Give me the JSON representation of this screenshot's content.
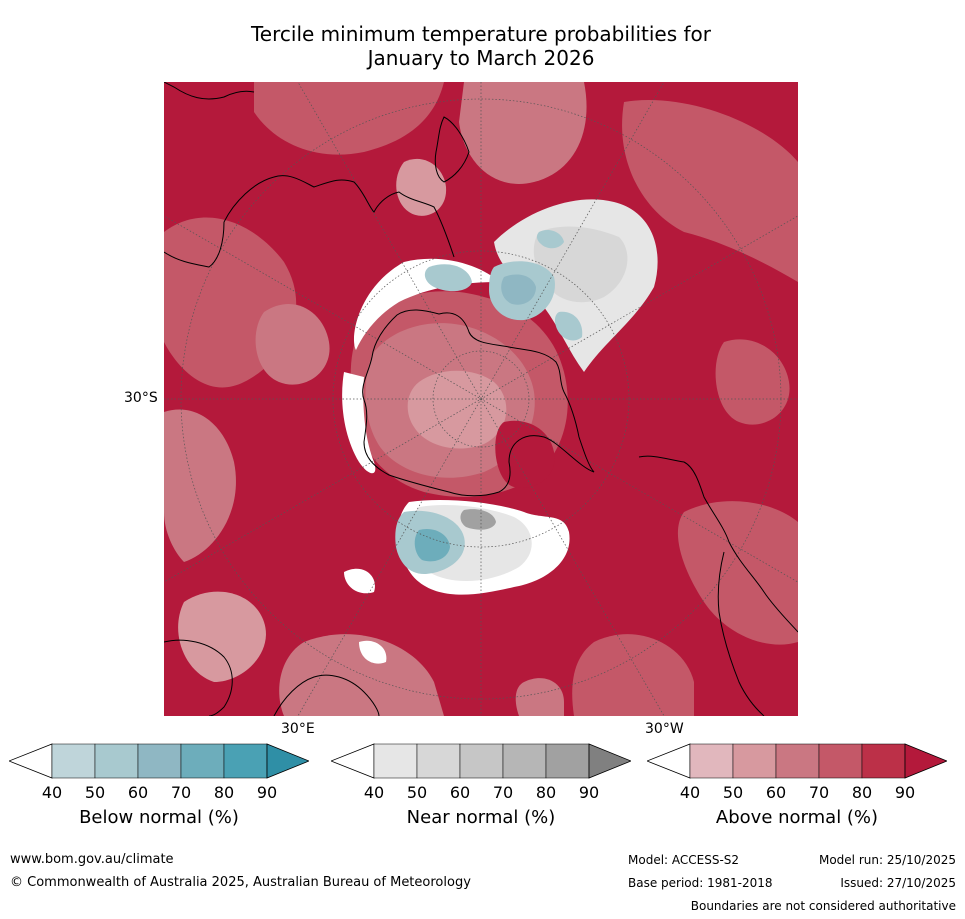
{
  "title": {
    "line1": "Tercile minimum temperature probabilities for",
    "line2": "January to March 2026"
  },
  "map": {
    "projection": "south-polar-stereographic",
    "lat_labels": {
      "left": "30°S",
      "bottom_left": "30°E",
      "bottom_right": "30°W"
    },
    "colors": {
      "above": [
        "#e1b7bd",
        "#d7999f",
        "#ca7782",
        "#c45868",
        "#bc3048",
        "#b4193b"
      ],
      "near": [
        "#e6e6e6",
        "#d7d7d7",
        "#c6c6c6",
        "#b6b6b6",
        "#a1a1a1",
        "#808080"
      ],
      "below": [
        "#bfd5da",
        "#a8c9cf",
        "#8fb7c3",
        "#6dadbb",
        "#4aa1b4",
        "#2f8fa6"
      ],
      "coastline": "#000000",
      "graticule": "#555555"
    }
  },
  "colorbars": [
    {
      "label": "Below normal (%)",
      "ticks": [
        "40",
        "50",
        "60",
        "70",
        "80",
        "90"
      ],
      "colors": [
        "#ffffff",
        "#bfd5da",
        "#a8c9cf",
        "#8fb7c3",
        "#6dadbb",
        "#4aa1b4",
        "#2f8fa6"
      ]
    },
    {
      "label": "Near normal (%)",
      "ticks": [
        "40",
        "50",
        "60",
        "70",
        "80",
        "90"
      ],
      "colors": [
        "#ffffff",
        "#e6e6e6",
        "#d7d7d7",
        "#c6c6c6",
        "#b6b6b6",
        "#a1a1a1",
        "#808080"
      ]
    },
    {
      "label": "Above normal (%)",
      "ticks": [
        "40",
        "50",
        "60",
        "70",
        "80",
        "90"
      ],
      "colors": [
        "#ffffff",
        "#e1b7bd",
        "#d7999f",
        "#ca7782",
        "#c45868",
        "#bc3048",
        "#b4193b"
      ]
    }
  ],
  "footer": {
    "url": "www.bom.gov.au/climate",
    "copyright": "© Commonwealth of Australia 2025, Australian Bureau of Meteorology",
    "model": "Model: ACCESS-S2",
    "base_period": "Base period: 1981-2018",
    "model_run": "Model run: 25/10/2025",
    "issued": "Issued: 27/10/2025",
    "disclaimer": "Boundaries are not considered authoritative"
  }
}
